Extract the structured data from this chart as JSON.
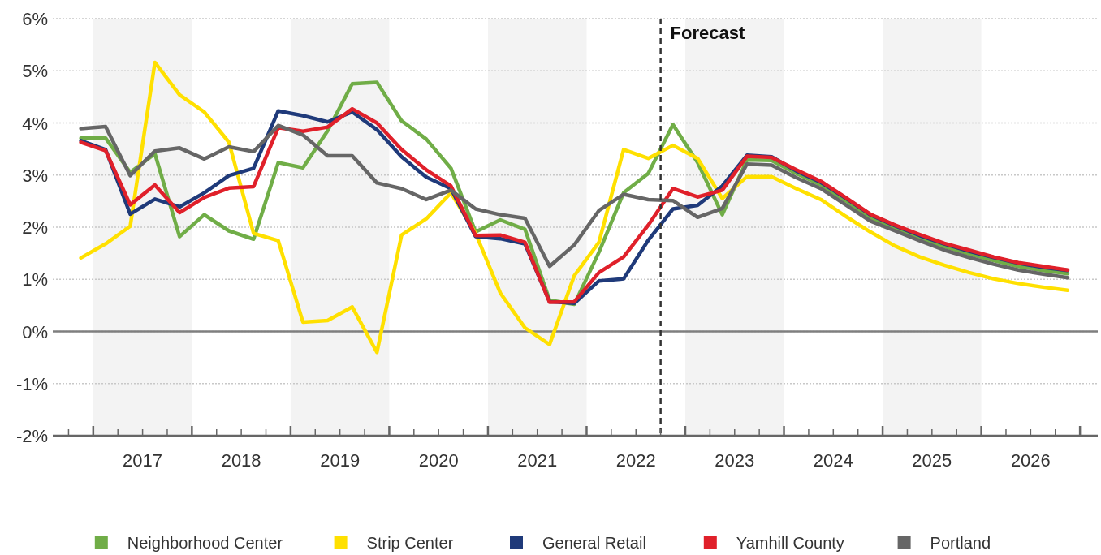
{
  "chart_data": {
    "type": "line",
    "x": [
      2016.875,
      2017.125,
      2017.375,
      2017.625,
      2017.875,
      2018.125,
      2018.375,
      2018.625,
      2018.875,
      2019.125,
      2019.375,
      2019.625,
      2019.875,
      2020.125,
      2020.375,
      2020.625,
      2020.875,
      2021.125,
      2021.375,
      2021.625,
      2021.875,
      2022.125,
      2022.375,
      2022.625,
      2022.875,
      2023.125,
      2023.375,
      2023.625,
      2023.875,
      2024.125,
      2024.375,
      2024.625,
      2024.875,
      2025.125,
      2025.375,
      2025.625,
      2025.875,
      2026.125,
      2026.375,
      2026.625,
      2026.875
    ],
    "series": [
      {
        "name": "Neighborhood Center",
        "color": "#70ad47",
        "values": [
          3.71,
          3.71,
          3.05,
          3.41,
          1.82,
          2.24,
          1.93,
          1.77,
          3.24,
          3.14,
          3.85,
          4.75,
          4.78,
          4.04,
          3.69,
          3.13,
          1.91,
          2.14,
          1.96,
          0.6,
          0.52,
          1.52,
          2.66,
          3.03,
          3.97,
          3.24,
          2.24,
          3.29,
          3.28,
          3.03,
          2.81,
          2.51,
          2.18,
          1.99,
          1.79,
          1.63,
          1.49,
          1.36,
          1.25,
          1.17,
          1.11
        ]
      },
      {
        "name": "Strip Center",
        "color": "#ffe000",
        "values": [
          1.41,
          1.68,
          2.02,
          5.16,
          4.54,
          4.21,
          3.63,
          1.88,
          1.74,
          0.18,
          0.21,
          0.47,
          -0.4,
          1.85,
          2.16,
          2.66,
          1.88,
          0.74,
          0.07,
          -0.25,
          1.07,
          1.71,
          3.49,
          3.32,
          3.57,
          3.32,
          2.55,
          2.97,
          2.97,
          2.74,
          2.53,
          2.21,
          1.91,
          1.64,
          1.43,
          1.27,
          1.13,
          1.01,
          0.92,
          0.85,
          0.79
        ]
      },
      {
        "name": "General Retail",
        "color": "#1f3a7a",
        "values": [
          3.66,
          3.49,
          2.25,
          2.54,
          2.39,
          2.66,
          2.99,
          3.13,
          4.23,
          4.14,
          4.02,
          4.21,
          3.87,
          3.35,
          2.96,
          2.74,
          1.82,
          1.78,
          1.68,
          0.57,
          0.54,
          0.97,
          1.01,
          1.75,
          2.35,
          2.42,
          2.79,
          3.38,
          3.35,
          3.08,
          2.86,
          2.56,
          2.24,
          2.03,
          1.84,
          1.68,
          1.54,
          1.42,
          1.31,
          1.23,
          1.17
        ]
      },
      {
        "name": "Yamhill County",
        "color": "#e0202a",
        "values": [
          3.63,
          3.47,
          2.43,
          2.81,
          2.28,
          2.57,
          2.75,
          2.78,
          3.91,
          3.84,
          3.92,
          4.27,
          4.0,
          3.49,
          3.1,
          2.79,
          1.84,
          1.85,
          1.71,
          0.56,
          0.57,
          1.13,
          1.43,
          2.04,
          2.74,
          2.58,
          2.71,
          3.36,
          3.34,
          3.1,
          2.88,
          2.57,
          2.25,
          2.04,
          1.86,
          1.69,
          1.56,
          1.43,
          1.32,
          1.25,
          1.18
        ]
      },
      {
        "name": "Portland",
        "color": "#666666",
        "values": [
          3.89,
          3.93,
          2.99,
          3.46,
          3.52,
          3.31,
          3.54,
          3.45,
          3.95,
          3.77,
          3.37,
          3.37,
          2.85,
          2.74,
          2.53,
          2.71,
          2.35,
          2.24,
          2.17,
          1.25,
          1.66,
          2.32,
          2.63,
          2.53,
          2.51,
          2.19,
          2.36,
          3.21,
          3.19,
          2.95,
          2.74,
          2.43,
          2.12,
          1.93,
          1.74,
          1.56,
          1.42,
          1.29,
          1.18,
          1.1,
          1.03
        ]
      }
    ],
    "xlim": [
      2016.59,
      2027.18
    ],
    "xticks": [
      {
        "value": 2016.75,
        "label": null
      },
      {
        "value": 2017,
        "label": null
      },
      {
        "value": 2017.25,
        "label": null
      },
      {
        "value": 2017.5,
        "label": "2017"
      },
      {
        "value": 2017.75,
        "label": null
      },
      {
        "value": 2018,
        "label": null
      },
      {
        "value": 2018.25,
        "label": null
      },
      {
        "value": 2018.5,
        "label": "2018"
      },
      {
        "value": 2018.75,
        "label": null
      },
      {
        "value": 2019,
        "label": null
      },
      {
        "value": 2019.25,
        "label": null
      },
      {
        "value": 2019.5,
        "label": "2019"
      },
      {
        "value": 2019.75,
        "label": null
      },
      {
        "value": 2020,
        "label": null
      },
      {
        "value": 2020.25,
        "label": null
      },
      {
        "value": 2020.5,
        "label": "2020"
      },
      {
        "value": 2020.75,
        "label": null
      },
      {
        "value": 2021,
        "label": null
      },
      {
        "value": 2021.25,
        "label": null
      },
      {
        "value": 2021.5,
        "label": "2021"
      },
      {
        "value": 2021.75,
        "label": null
      },
      {
        "value": 2022,
        "label": null
      },
      {
        "value": 2022.25,
        "label": null
      },
      {
        "value": 2022.5,
        "label": "2022"
      },
      {
        "value": 2022.75,
        "label": null
      },
      {
        "value": 2023,
        "label": null
      },
      {
        "value": 2023.25,
        "label": null
      },
      {
        "value": 2023.5,
        "label": "2023"
      },
      {
        "value": 2023.75,
        "label": null
      },
      {
        "value": 2024,
        "label": null
      },
      {
        "value": 2024.25,
        "label": null
      },
      {
        "value": 2024.5,
        "label": "2024"
      },
      {
        "value": 2024.75,
        "label": null
      },
      {
        "value": 2025,
        "label": null
      },
      {
        "value": 2025.25,
        "label": null
      },
      {
        "value": 2025.5,
        "label": "2025"
      },
      {
        "value": 2025.75,
        "label": null
      },
      {
        "value": 2026,
        "label": null
      },
      {
        "value": 2026.25,
        "label": null
      },
      {
        "value": 2026.5,
        "label": "2026"
      },
      {
        "value": 2026.75,
        "label": null
      },
      {
        "value": 2027,
        "label": null
      }
    ],
    "ylim": [
      -2,
      6
    ],
    "yticks": [
      {
        "value": -2,
        "label": "-2%"
      },
      {
        "value": -1,
        "label": "-1%"
      },
      {
        "value": 0,
        "label": "0%"
      },
      {
        "value": 1,
        "label": "1%"
      },
      {
        "value": 2,
        "label": "2%"
      },
      {
        "value": 3,
        "label": "3%"
      },
      {
        "value": 4,
        "label": "4%"
      },
      {
        "value": 5,
        "label": "5%"
      },
      {
        "value": 6,
        "label": "6%"
      }
    ],
    "grid": "y",
    "legend": "bottom",
    "line_style": "solid",
    "ref_lines": [
      {
        "axis": "y",
        "value": 0,
        "color": "#7f7f7f",
        "line_style": "solid"
      },
      {
        "axis": "x",
        "value": 2022.75,
        "label": "Forecast",
        "color": "#333333",
        "line_style": "dashed"
      }
    ],
    "bands": [
      {
        "axis": "x",
        "from": 2017,
        "to": 2018,
        "color": "#f3f3f3"
      },
      {
        "axis": "x",
        "from": 2019,
        "to": 2020,
        "color": "#f3f3f3"
      },
      {
        "axis": "x",
        "from": 2021,
        "to": 2022,
        "color": "#f3f3f3"
      },
      {
        "axis": "x",
        "from": 2023,
        "to": 2024,
        "color": "#f3f3f3"
      },
      {
        "axis": "x",
        "from": 2025,
        "to": 2026,
        "color": "#f3f3f3"
      }
    ]
  }
}
